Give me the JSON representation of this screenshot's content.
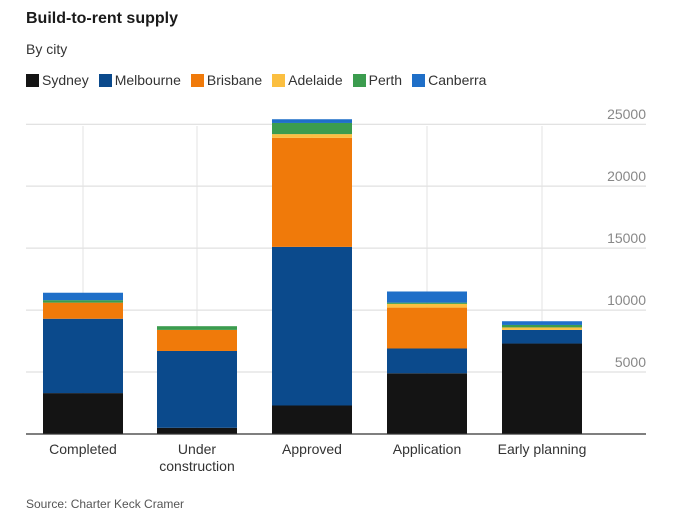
{
  "chart_data": {
    "type": "bar",
    "stacked": true,
    "title": "Build-to-rent supply",
    "subtitle": "By city",
    "source": "Source: Charter Keck Cramer",
    "categories": [
      "Completed",
      "Under construction",
      "Approved",
      "Application",
      "Early planning"
    ],
    "category_lines": [
      [
        "Completed"
      ],
      [
        "Under",
        "construction"
      ],
      [
        "Approved"
      ],
      [
        "Application"
      ],
      [
        "Early planning"
      ]
    ],
    "series": [
      {
        "name": "Sydney",
        "color": "#141414",
        "values": [
          3300,
          500,
          2300,
          4900,
          7300
        ]
      },
      {
        "name": "Melbourne",
        "color": "#0b4a8c",
        "values": [
          6000,
          6200,
          12800,
          2000,
          1100
        ]
      },
      {
        "name": "Brisbane",
        "color": "#f07a0a",
        "values": [
          1300,
          1700,
          8800,
          3300,
          0
        ]
      },
      {
        "name": "Adelaide",
        "color": "#fbbf40",
        "values": [
          0,
          0,
          300,
          300,
          200
        ]
      },
      {
        "name": "Perth",
        "color": "#3b9c4e",
        "values": [
          200,
          300,
          900,
          100,
          200
        ]
      },
      {
        "name": "Canberra",
        "color": "#1f6fc8",
        "values": [
          600,
          0,
          300,
          900,
          300
        ]
      }
    ],
    "yticks": [
      5000,
      10000,
      15000,
      20000,
      25000
    ],
    "ylim": [
      0,
      25500
    ],
    "grid": true,
    "legend_position": "top-left"
  }
}
